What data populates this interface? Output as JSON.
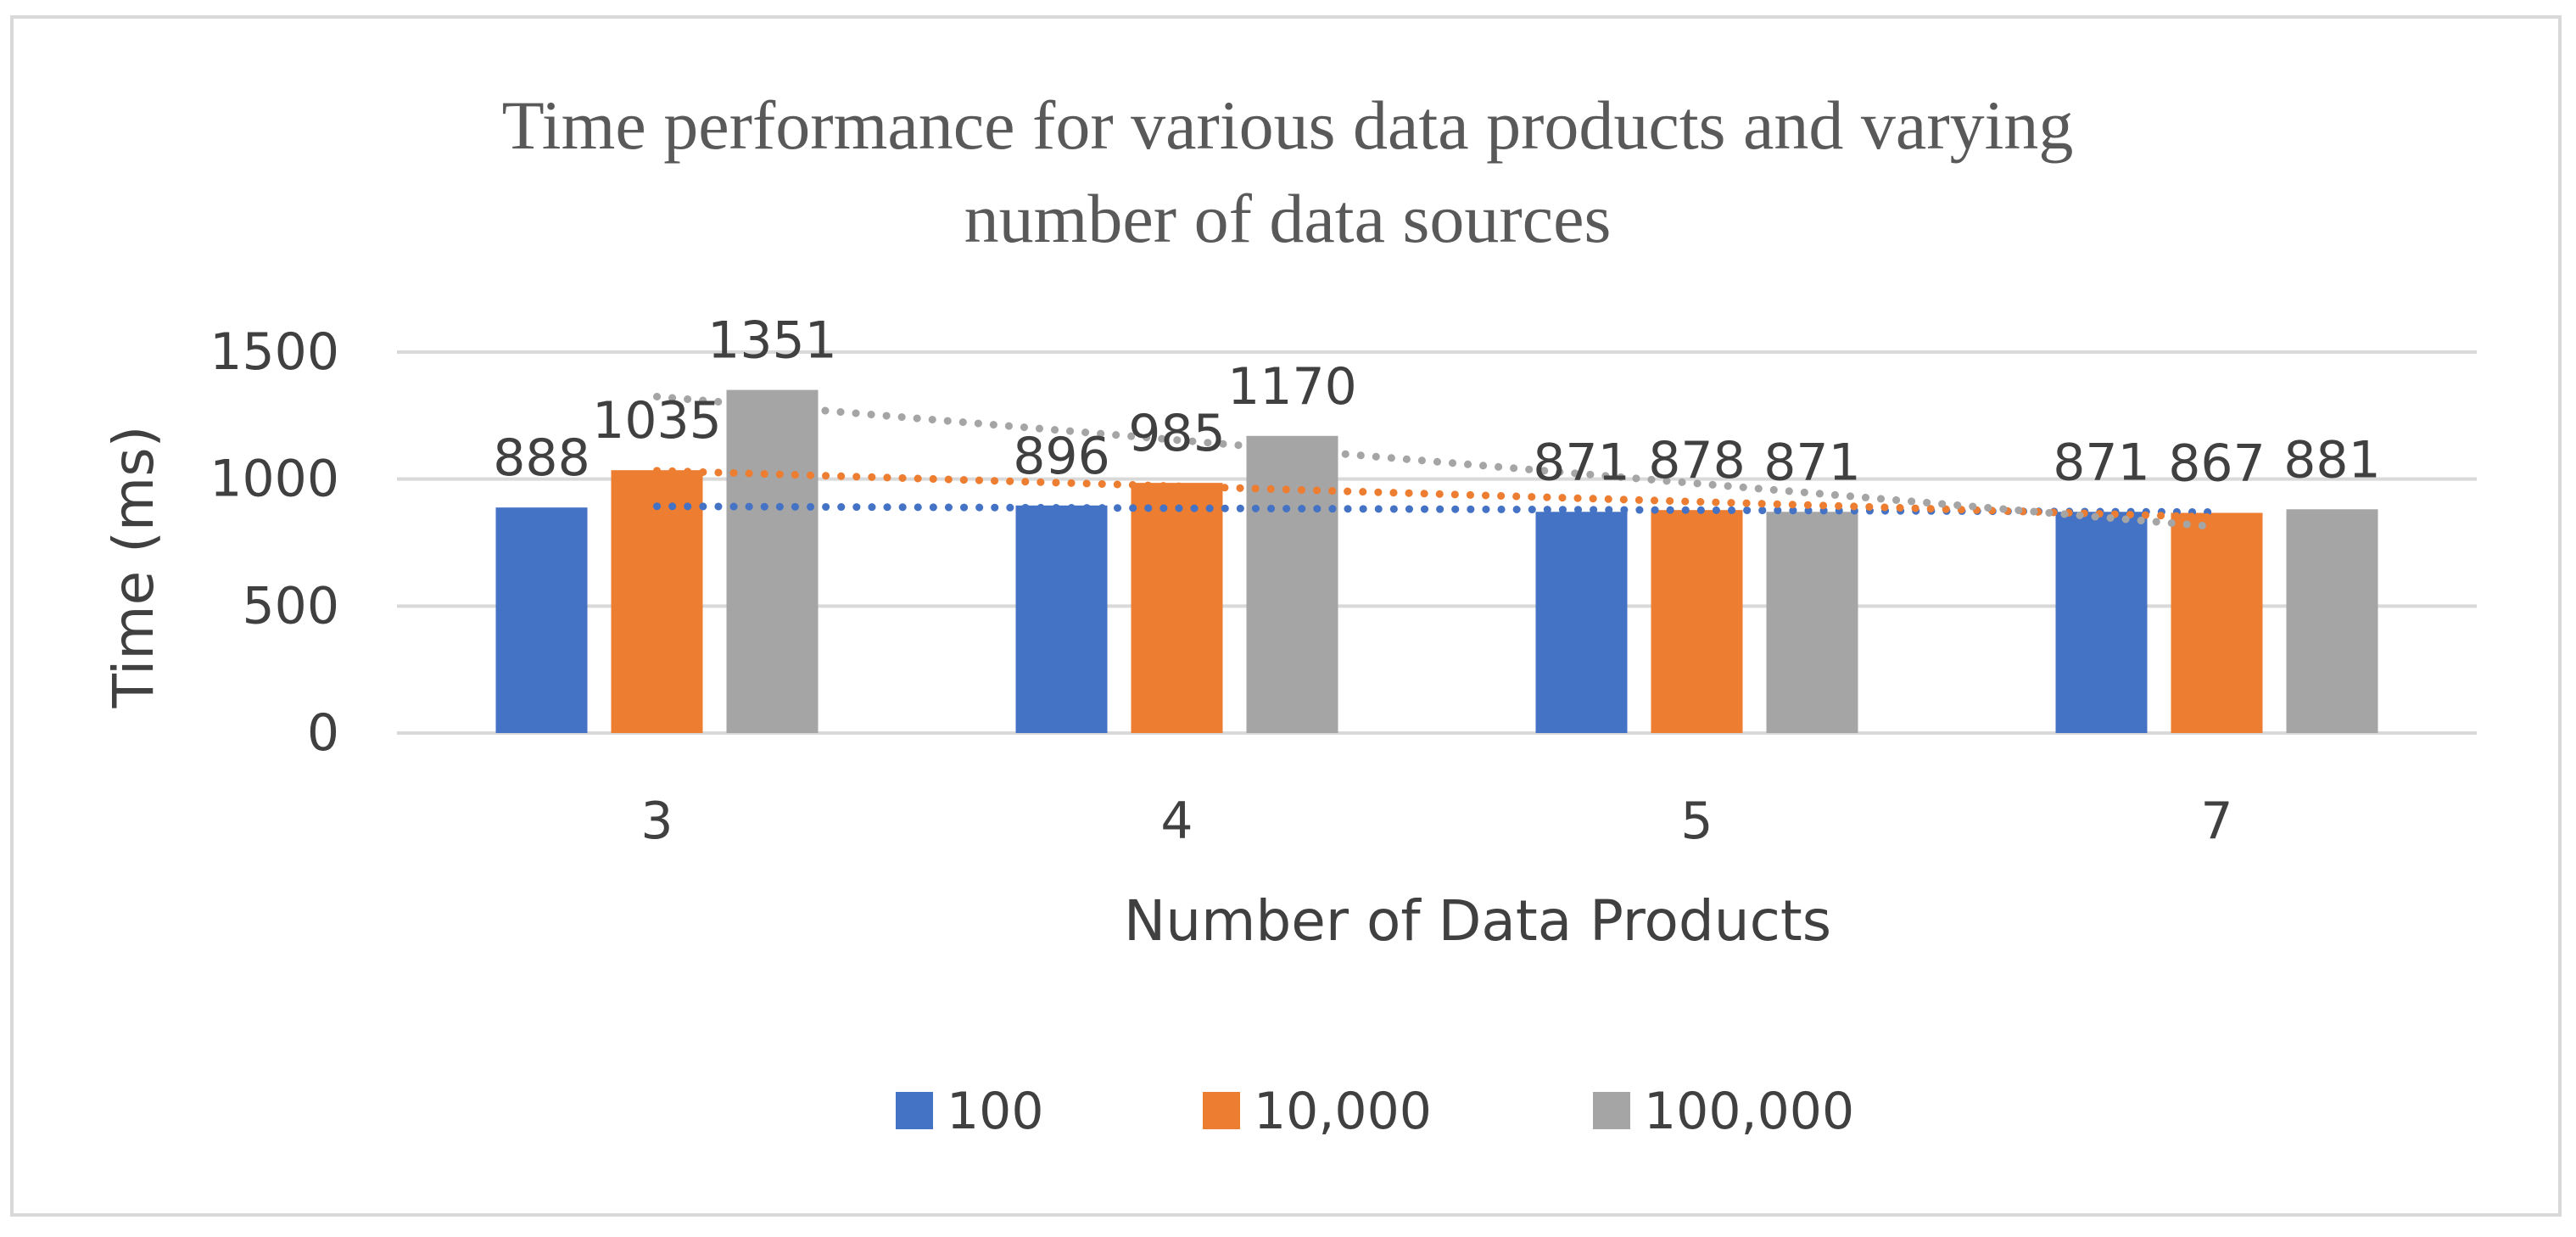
{
  "chart_data": {
    "type": "bar",
    "title": "Time performance for various data products and varying number of data sources",
    "title_lines": [
      "Time performance for various data products and varying",
      "number of data sources"
    ],
    "xlabel": "Number of Data Products",
    "ylabel": "Time (ms)",
    "categories": [
      "3",
      "4",
      "5",
      "7"
    ],
    "ylim": [
      0,
      1500
    ],
    "yticks": [
      0,
      500,
      1000,
      1500
    ],
    "ytick_labels": [
      "0",
      "500",
      "1000",
      "1500"
    ],
    "grid": true,
    "legend_position": "bottom",
    "trendlines": "linear, dotted, one per series",
    "series": [
      {
        "name": "100",
        "color": "#4472c4",
        "values": [
          888,
          896,
          871,
          871
        ],
        "labels": [
          "888",
          "896",
          "871",
          "871"
        ]
      },
      {
        "name": "10,000",
        "color": "#ed7d31",
        "values": [
          1035,
          985,
          878,
          867
        ],
        "labels": [
          "1035",
          "985",
          "878",
          "867"
        ]
      },
      {
        "name": "100,000",
        "color": "#a5a5a5",
        "values": [
          1351,
          1170,
          871,
          881
        ],
        "labels": [
          "1351",
          "1170",
          "871",
          "881"
        ]
      }
    ]
  }
}
